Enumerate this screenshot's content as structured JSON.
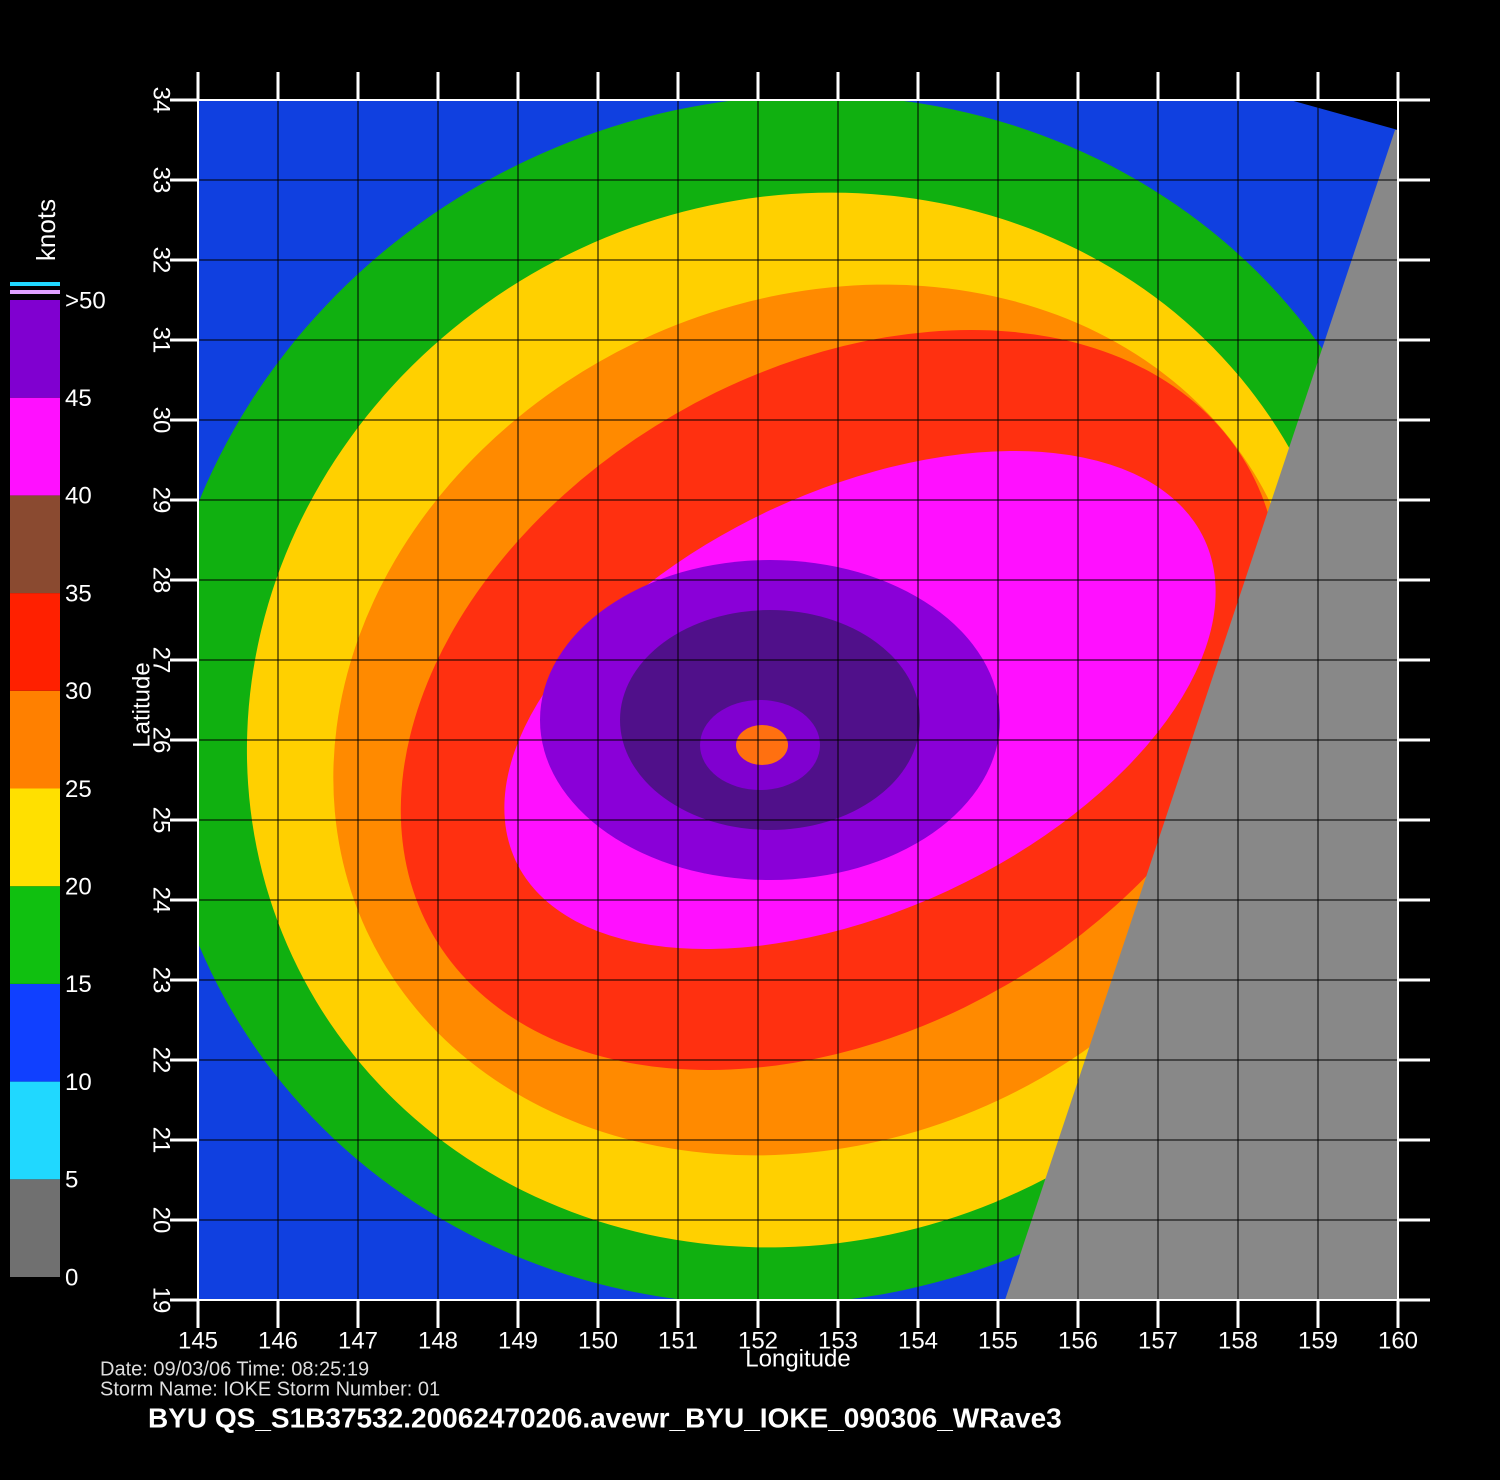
{
  "chart_data": {
    "type": "map",
    "xlabel": "Longitude",
    "ylabel": "Latitude",
    "xlim": [
      145,
      160
    ],
    "ylim": [
      19,
      34
    ],
    "xticks": [
      145,
      146,
      147,
      148,
      149,
      150,
      151,
      152,
      153,
      154,
      155,
      156,
      157,
      158,
      159,
      160
    ],
    "yticks": [
      19,
      20,
      21,
      22,
      23,
      24,
      25,
      26,
      27,
      28,
      29,
      30,
      31,
      32,
      33,
      34
    ],
    "grid": true,
    "colorbar": {
      "label": "knots",
      "lim": [
        0,
        50
      ],
      "ticks": [
        0,
        5,
        10,
        15,
        20,
        25,
        30,
        35,
        40,
        45,
        {
          "value": 50,
          "label": ">50"
        }
      ],
      "colors": [
        "#707070",
        "#20d8ff",
        "#1040ff",
        "#10c010",
        "#ffe000",
        "#ff8000",
        "#ff2000",
        "#8a4a30",
        "#ff10ff",
        "#8000d0"
      ]
    },
    "footer": [
      "Date: 09/03/06   Time: 08:25:19",
      "Storm  Name: IOKE   Storm  Number: 01"
    ],
    "caption": "BYU  QS_S1B37532.20062470206.avewr_BYU_IOKE_090306_WRave3"
  }
}
